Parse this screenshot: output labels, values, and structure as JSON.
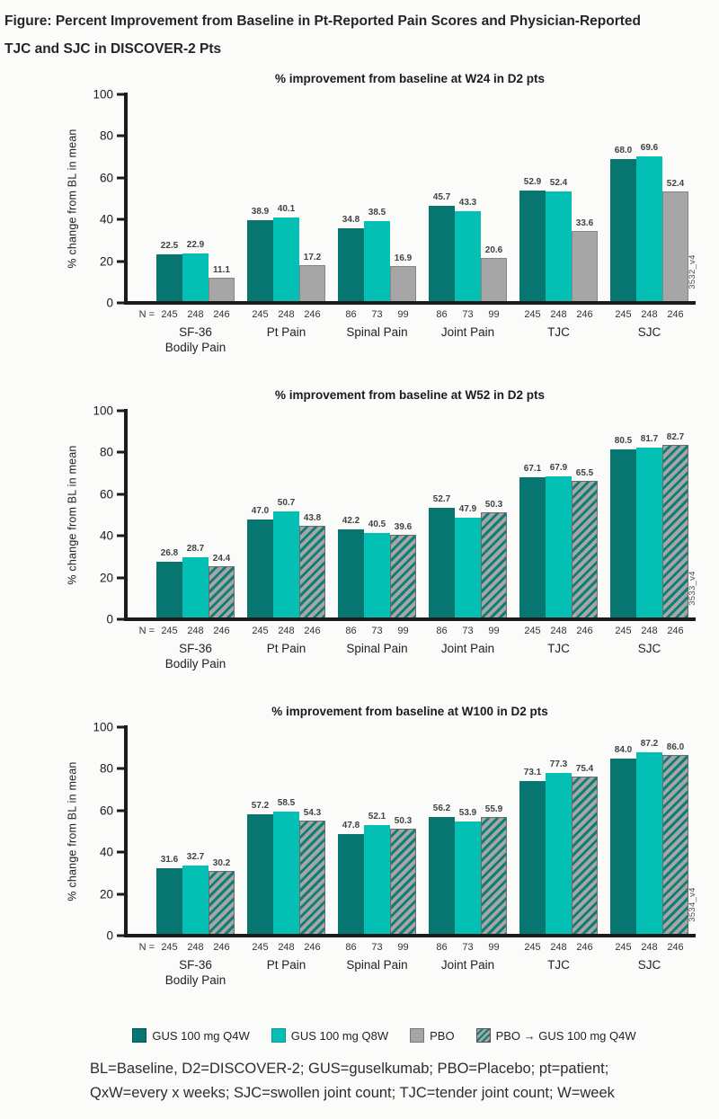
{
  "page": {
    "figure_title": "Figure: Percent Improvement from Baseline in Pt-Reported Pain Scores and Physician-Reported TJC and SJC in DISCOVER-2 Pts",
    "footnote": [
      "BL=Baseline, D2=DISCOVER-2; GUS=guselkumab; PBO=Placebo; pt=patient;",
      "QxW=every x weeks; SJC=swollen joint count; TJC=tender joint count; W=week"
    ]
  },
  "colors": {
    "gus_q4w": "#087670",
    "gus_q8w": "#04bfb4",
    "pbo": "#a6a6a6",
    "hatch_stripe": "#0f7e77",
    "axis": "#1b1b1b"
  },
  "legend": [
    {
      "label": "GUS 100 mg Q4W",
      "style": "q4w"
    },
    {
      "label": "GUS 100 mg Q8W",
      "style": "q8w"
    },
    {
      "label": "PBO",
      "style": "pbo"
    },
    {
      "label": "PBO → GUS 100 mg Q4W",
      "style": "pbo_gus"
    }
  ],
  "chart_data": [
    {
      "type": "bar",
      "id": "w24",
      "title": "% improvement from baseline at W24 in D2 pts",
      "ylabel": "% change from BL in mean",
      "ylim": [
        0,
        100
      ],
      "yticks": [
        0,
        20,
        40,
        60,
        80,
        100
      ],
      "grid": false,
      "side_label": "3532_v4",
      "n_prefix": "N =",
      "categories": [
        {
          "label": "SF-36",
          "label2": "Bodily Pain",
          "n": [
            "245",
            "248",
            "246"
          ]
        },
        {
          "label": "Pt Pain",
          "n": [
            "245",
            "248",
            "246"
          ]
        },
        {
          "label": "Spinal Pain",
          "n": [
            "86",
            "73",
            "99"
          ]
        },
        {
          "label": "Joint Pain",
          "n": [
            "86",
            "73",
            "99"
          ]
        },
        {
          "label": "TJC",
          "n": [
            "245",
            "248",
            "246"
          ]
        },
        {
          "label": "SJC",
          "n": [
            "245",
            "248",
            "246"
          ]
        }
      ],
      "series": [
        {
          "name": "GUS 100 mg Q4W",
          "style": "q4w",
          "values": [
            22.5,
            38.9,
            34.8,
            45.7,
            52.9,
            68.0
          ]
        },
        {
          "name": "GUS 100 mg Q8W",
          "style": "q8w",
          "values": [
            22.9,
            40.1,
            38.5,
            43.3,
            52.4,
            69.6
          ]
        },
        {
          "name": "PBO",
          "style": "pbo",
          "values": [
            11.1,
            17.2,
            16.9,
            20.6,
            33.6,
            52.4
          ]
        }
      ]
    },
    {
      "type": "bar",
      "id": "w52",
      "title": "% improvement from baseline at W52 in D2 pts",
      "ylabel": "% change from BL in mean",
      "ylim": [
        0,
        100
      ],
      "yticks": [
        0,
        20,
        40,
        60,
        80,
        100
      ],
      "grid": false,
      "side_label": "3533_v4",
      "n_prefix": "N =",
      "categories": [
        {
          "label": "SF-36",
          "label2": "Bodily Pain",
          "n": [
            "245",
            "248",
            "246"
          ]
        },
        {
          "label": "Pt Pain",
          "n": [
            "245",
            "248",
            "246"
          ]
        },
        {
          "label": "Spinal Pain",
          "n": [
            "86",
            "73",
            "99"
          ]
        },
        {
          "label": "Joint Pain",
          "n": [
            "86",
            "73",
            "99"
          ]
        },
        {
          "label": "TJC",
          "n": [
            "245",
            "248",
            "246"
          ]
        },
        {
          "label": "SJC",
          "n": [
            "245",
            "248",
            "246"
          ]
        }
      ],
      "series": [
        {
          "name": "GUS 100 mg Q4W",
          "style": "q4w",
          "values": [
            26.8,
            47.0,
            42.2,
            52.7,
            67.1,
            80.5
          ]
        },
        {
          "name": "GUS 100 mg Q8W",
          "style": "q8w",
          "values": [
            28.7,
            50.7,
            40.5,
            47.9,
            67.9,
            81.7
          ]
        },
        {
          "name": "PBO → GUS 100 mg Q4W",
          "style": "pbo_gus",
          "values": [
            24.4,
            43.8,
            39.6,
            50.3,
            65.5,
            82.7
          ]
        }
      ]
    },
    {
      "type": "bar",
      "id": "w100",
      "title": "% improvement from baseline at W100 in D2 pts",
      "ylabel": "% change from BL in mean",
      "ylim": [
        0,
        100
      ],
      "yticks": [
        0,
        20,
        40,
        60,
        80,
        100
      ],
      "grid": false,
      "side_label": "3534_v4",
      "n_prefix": "N =",
      "categories": [
        {
          "label": "SF-36",
          "label2": "Bodily Pain",
          "n": [
            "245",
            "248",
            "246"
          ]
        },
        {
          "label": "Pt Pain",
          "n": [
            "245",
            "248",
            "246"
          ]
        },
        {
          "label": "Spinal Pain",
          "n": [
            "86",
            "73",
            "99"
          ]
        },
        {
          "label": "Joint Pain",
          "n": [
            "86",
            "73",
            "99"
          ]
        },
        {
          "label": "TJC",
          "n": [
            "245",
            "248",
            "246"
          ]
        },
        {
          "label": "SJC",
          "n": [
            "245",
            "248",
            "246"
          ]
        }
      ],
      "series": [
        {
          "name": "GUS 100 mg Q4W",
          "style": "q4w",
          "values": [
            31.6,
            57.2,
            47.8,
            56.2,
            73.1,
            84.0
          ]
        },
        {
          "name": "GUS 100 mg Q8W",
          "style": "q8w",
          "values": [
            32.7,
            58.5,
            52.1,
            53.9,
            77.3,
            87.2
          ]
        },
        {
          "name": "PBO → GUS 100 mg Q4W",
          "style": "pbo_gus",
          "values": [
            30.2,
            54.3,
            50.3,
            55.9,
            75.4,
            86.0
          ]
        }
      ]
    }
  ]
}
